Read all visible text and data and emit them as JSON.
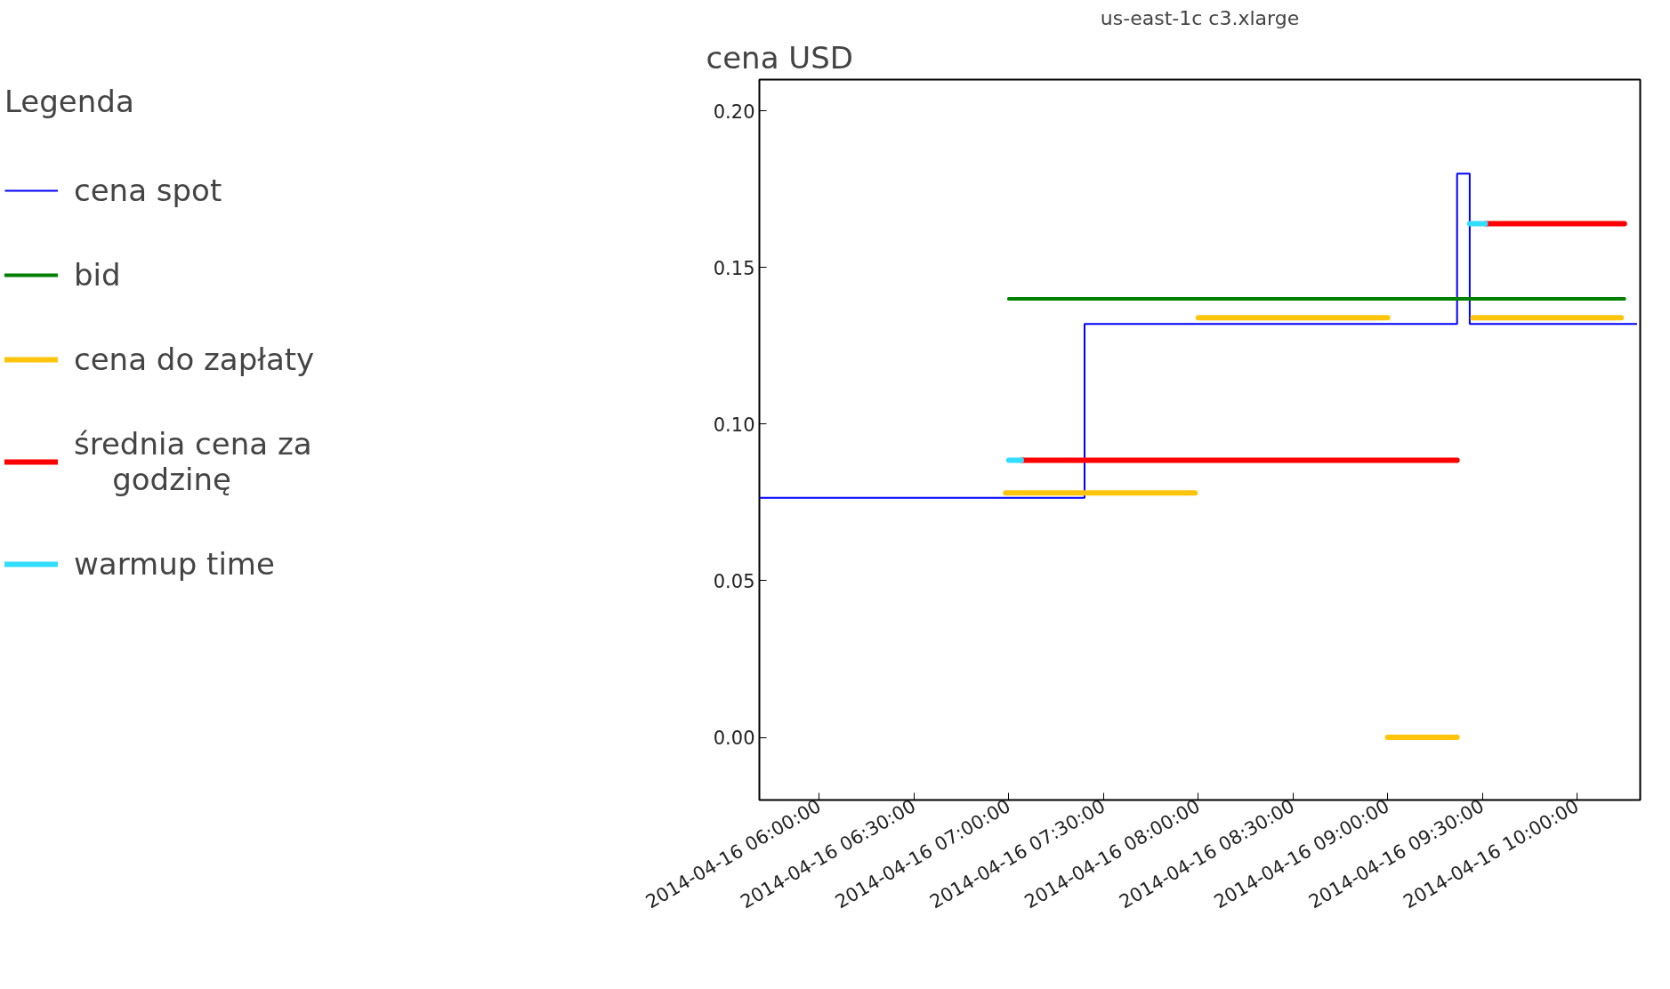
{
  "chart_data": {
    "type": "line",
    "title": "us-east-1c c3.xlarge",
    "ylabel": "cena USD",
    "legend_title": "Legenda",
    "legend": "left",
    "grid": false,
    "marker": "none",
    "line_style": "solid",
    "xlim": [
      "2014-04-16T05:41",
      "2014-04-16T10:20"
    ],
    "ylim": [
      -0.02,
      0.21
    ],
    "xticks": [
      {
        "value": "2014-04-16T06:00",
        "label": "2014-04-16 06:00:00"
      },
      {
        "value": "2014-04-16T06:30",
        "label": "2014-04-16 06:30:00"
      },
      {
        "value": "2014-04-16T07:00",
        "label": "2014-04-16 07:00:00"
      },
      {
        "value": "2014-04-16T07:30",
        "label": "2014-04-16 07:30:00"
      },
      {
        "value": "2014-04-16T08:00",
        "label": "2014-04-16 08:00:00"
      },
      {
        "value": "2014-04-16T08:30",
        "label": "2014-04-16 08:30:00"
      },
      {
        "value": "2014-04-16T09:00",
        "label": "2014-04-16 09:00:00"
      },
      {
        "value": "2014-04-16T09:30",
        "label": "2014-04-16 09:30:00"
      },
      {
        "value": "2014-04-16T10:00",
        "label": "2014-04-16 10:00:00"
      }
    ],
    "yticks": [
      {
        "value": 0,
        "label": "0.00"
      },
      {
        "value": 0.05,
        "label": "0.05"
      },
      {
        "value": 0.1,
        "label": "0.10"
      },
      {
        "value": 0.15,
        "label": "0.15"
      },
      {
        "value": 0.2,
        "label": "0.20"
      }
    ],
    "series": [
      {
        "name": "cena spot",
        "color": "#0000ff",
        "type": "step",
        "x": [
          "2014-04-16T05:41",
          "2014-04-16T07:24",
          "2014-04-16T09:22",
          "2014-04-16T09:26",
          "2014-04-16T10:19"
        ],
        "values": [
          0.0765,
          0.132,
          0.18,
          0.132,
          0.132
        ]
      },
      {
        "name": "bid",
        "color": "#008000",
        "x": [
          "2014-04-16T07:00",
          "2014-04-16T10:15"
        ],
        "values": [
          0.14,
          0.14
        ]
      },
      {
        "name": "cena do zapłaty",
        "color": "#ffc40c",
        "x": [
          "2014-04-16T06:59",
          "2014-04-16T07:24"
        ],
        "values": [
          0.078,
          0.078
        ]
      },
      {
        "color": "#ffc40c",
        "x": [
          "2014-04-16T07:25",
          "2014-04-16T07:59"
        ],
        "values": [
          0.078,
          0.078
        ]
      },
      {
        "color": "#ffc40c",
        "x": [
          "2014-04-16T08:00",
          "2014-04-16T09:00"
        ],
        "values": [
          0.134,
          0.134
        ]
      },
      {
        "color": "#ffc40c",
        "x": [
          "2014-04-16T09:00",
          "2014-04-16T09:22"
        ],
        "values": [
          0.0,
          0.0
        ]
      },
      {
        "color": "#ffc40c",
        "x": [
          "2014-04-16T09:27",
          "2014-04-16T10:14"
        ],
        "values": [
          0.134,
          0.134
        ]
      },
      {
        "name": "średnia cena za\n    godzinę",
        "color": "#ff0000",
        "x": [
          "2014-04-16T07:04",
          "2014-04-16T09:22"
        ],
        "values": [
          0.0885,
          0.0885
        ]
      },
      {
        "color": "#ff0000",
        "x": [
          "2014-04-16T09:31",
          "2014-04-16T10:15"
        ],
        "values": [
          0.164,
          0.164
        ]
      },
      {
        "name": "warmup time",
        "color": "#33ddff",
        "x": [
          "2014-04-16T07:00",
          "2014-04-16T07:04"
        ],
        "values": [
          0.0885,
          0.0885
        ]
      },
      {
        "color": "#33ddff",
        "x": [
          "2014-04-16T09:26",
          "2014-04-16T09:31"
        ],
        "values": [
          0.164,
          0.164
        ]
      }
    ]
  }
}
